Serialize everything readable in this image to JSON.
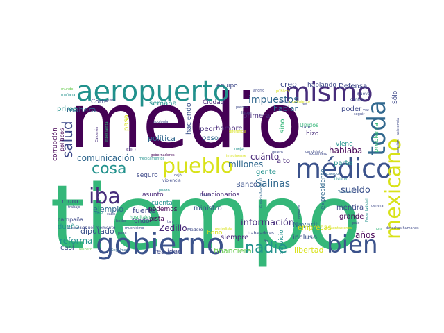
{
  "words": [
    {
      "text": "tiempo",
      "color": "#35b779"
    },
    {
      "text": "medio",
      "color": "#440154"
    },
    {
      "text": "gobierno",
      "color": "#3b528b"
    },
    {
      "text": "aeropuerto",
      "color": "#21918c"
    },
    {
      "text": "mismo",
      "color": "#472d7b"
    },
    {
      "text": "médico",
      "color": "#3b528b"
    },
    {
      "text": "toda",
      "color": "#31688e"
    },
    {
      "text": "mexicano",
      "color": "#d8e219"
    },
    {
      "text": "pueblo",
      "color": "#d8e219"
    },
    {
      "text": "bien",
      "color": "#3b528b"
    },
    {
      "text": "iba",
      "color": "#472d7b"
    },
    {
      "text": "cosa",
      "color": "#21918c"
    },
    {
      "text": "nadie",
      "color": "#21918c"
    },
    {
      "text": "salud",
      "color": "#3e4989"
    },
    {
      "text": "impuestos",
      "color": "#31688e"
    },
    {
      "text": "comunicación",
      "color": "#31688e"
    },
    {
      "text": "Salinas",
      "color": "#31688e"
    },
    {
      "text": "sueldo",
      "color": "#3b528b"
    },
    {
      "text": "información",
      "color": "#472d7b"
    },
    {
      "text": "reforma",
      "color": "#21918c"
    },
    {
      "text": "millones",
      "color": "#31688e"
    },
    {
      "text": "hablaba",
      "color": "#440154"
    },
    {
      "text": "Zedillo",
      "color": "#482878"
    },
    {
      "text": "financiera",
      "color": "#6ece58"
    },
    {
      "text": "años",
      "color": "#440154"
    },
    {
      "text": "libertad",
      "color": "#d8e219"
    },
    {
      "text": "hablar",
      "color": "#31688e"
    },
    {
      "text": "creo",
      "color": "#3e4989"
    },
    {
      "text": "cuánto",
      "color": "#482878"
    },
    {
      "text": "fuerte",
      "color": "#3e4989"
    },
    {
      "text": "ejemplo",
      "color": "#31688e"
    },
    {
      "text": "diputado",
      "color": "#3b528b"
    },
    {
      "text": "manera",
      "color": "#31688e"
    },
    {
      "text": "Defensa",
      "color": "#3e4989"
    },
    {
      "text": "política",
      "color": "#31688e"
    },
    {
      "text": "gente",
      "color": "#21918c"
    },
    {
      "text": "alto",
      "color": "#482878"
    },
    {
      "text": "hombre",
      "color": "#482878"
    },
    {
      "text": "problema",
      "color": "#35b779"
    },
    {
      "text": "mentira",
      "color": "#3e4989"
    },
    {
      "text": "Nayarit",
      "color": "#31688e"
    },
    {
      "text": "grande",
      "color": "#440154"
    },
    {
      "text": "incluso",
      "color": "#3b528b"
    },
    {
      "text": "ministro",
      "color": "#3b528b"
    },
    {
      "text": "siempre",
      "color": "#482878"
    },
    {
      "text": "realidad",
      "color": "#3e4989"
    },
    {
      "text": "casi",
      "color": "#3e4989"
    },
    {
      "text": "dueño",
      "color": "#21918c"
    },
    {
      "text": "campaña",
      "color": "#3e4989"
    },
    {
      "text": "corrupción",
      "color": "#440154"
    },
    {
      "text": "políticos",
      "color": "#440154"
    },
    {
      "text": "primer",
      "color": "#21918c"
    },
    {
      "text": "semana",
      "color": "#21918c"
    },
    {
      "text": "pasa",
      "color": "#d8e219"
    },
    {
      "text": "haciendo",
      "color": "#3b528b"
    },
    {
      "text": "Ciudad",
      "color": "#482878"
    },
    {
      "text": "peor",
      "color": "#472d7b"
    },
    {
      "text": "peso",
      "color": "#31688e"
    },
    {
      "text": "sino",
      "color": "#35b779"
    },
    {
      "text": "primera",
      "color": "#472d7b"
    },
    {
      "text": "hizo",
      "color": "#472d7b"
    },
    {
      "text": "parte",
      "color": "#21918c"
    },
    {
      "text": "viene",
      "color": "#21918c"
    },
    {
      "text": "poder",
      "color": "#3e4989"
    },
    {
      "text": "Sólo",
      "color": "#3e4989"
    },
    {
      "text": "Banco",
      "color": "#3b528b"
    },
    {
      "text": "empresas",
      "color": "#d8e219"
    },
    {
      "text": "servicio",
      "color": "#21918c"
    },
    {
      "text": "expresidente",
      "color": "#31688e"
    },
    {
      "text": "funcionarios",
      "color": "#482878"
    },
    {
      "text": "asunto",
      "color": "#482878"
    },
    {
      "text": "seguro",
      "color": "#3e4989"
    },
    {
      "text": "podemos",
      "color": "#440154"
    },
    {
      "text": "cuenta",
      "color": "#21918c"
    },
    {
      "text": "fondo",
      "color": "#3e4989"
    },
    {
      "text": "pista",
      "color": "#440154"
    },
    {
      "text": "bono",
      "color": "#d8e219"
    },
    {
      "text": "equipo",
      "color": "#3e4989"
    },
    {
      "text": "hablando",
      "color": "#3e4989"
    },
    {
      "text": "muro",
      "color": "#3e4989"
    },
    {
      "text": "dio",
      "color": "#482878"
    },
    {
      "text": "Corte",
      "color": "#3e4989"
    },
    {
      "text": "Unidos",
      "color": "#35b779"
    },
    {
      "text": "cráter",
      "color": "#3e4989"
    },
    {
      "text": "Terminal",
      "color": "#31688e"
    },
    {
      "text": "Guardia Nacional",
      "color": "#31688e"
    },
    {
      "text": "Poder Judicial",
      "color": "#21918c"
    },
    {
      "text": "aquel momento",
      "color": "#3e4989"
    },
    {
      "text": "muchísimo",
      "color": "#3e4989"
    },
    {
      "text": "hospitales",
      "color": "#35b779"
    },
    {
      "text": "trabajadores",
      "color": "#3e4989"
    },
    {
      "text": "Madero",
      "color": "#3e4989"
    },
    {
      "text": "violencia",
      "color": "#3e4989"
    },
    {
      "text": "gobernadores",
      "color": "#440154"
    },
    {
      "text": "Segalmex",
      "color": "#31688e"
    },
    {
      "text": "respeto",
      "color": "#6ece58"
    },
    {
      "text": "apología",
      "color": "#3e4989"
    },
    {
      "text": "Calderón",
      "color": "#472d7b"
    },
    {
      "text": "especialista",
      "color": "#35b779"
    },
    {
      "text": "extranjero",
      "color": "#3e4989"
    },
    {
      "text": "candidato",
      "color": "#3e4989"
    },
    {
      "text": "acuerdo",
      "color": "#31688e"
    },
    {
      "text": "hicieron",
      "color": "#21918c"
    },
    {
      "text": "derechos humanos",
      "color": "#3e4989"
    },
    {
      "text": "pensión",
      "color": "#3e4989"
    },
    {
      "text": "asistencia",
      "color": "#3e4989"
    },
    {
      "text": "medicamentos",
      "color": "#21918c"
    },
    {
      "text": "imaginense",
      "color": "#d8e219"
    },
    {
      "text": "diferencia",
      "color": "#d8e219"
    },
    {
      "text": "periodista",
      "color": "#d8e219"
    },
    {
      "text": "austeridad",
      "color": "#3e4989"
    },
    {
      "text": "nuevo",
      "color": "#3e4989"
    },
    {
      "text": "centro",
      "color": "#3e4989"
    },
    {
      "text": "movimiento",
      "color": "#d8e219"
    },
    {
      "text": "quiero",
      "color": "#3e4989"
    },
    {
      "text": "prensa",
      "color": "#3e4989"
    },
    {
      "text": "ahorro",
      "color": "#3e4989"
    },
    {
      "text": "mañana",
      "color": "#21918c"
    },
    {
      "text": "lista",
      "color": "#3e4989"
    },
    {
      "text": "mejor",
      "color": "#21918c"
    },
    {
      "text": "trabajo",
      "color": "#3e4989"
    },
    {
      "text": "hecho",
      "color": "#3e4989"
    },
    {
      "text": "libro",
      "color": "#21918c"
    },
    {
      "text": "pone",
      "color": "#3e4989"
    },
    {
      "text": "nombre",
      "color": "#3e4989"
    },
    {
      "text": "pais",
      "color": "#3e4989"
    },
    {
      "text": "hora",
      "color": "#35b779"
    },
    {
      "text": "fin",
      "color": "#3e4989"
    },
    {
      "text": "tan",
      "color": "#3e4989"
    },
    {
      "text": "mundo",
      "color": "#6ece58"
    },
    {
      "text": "ley",
      "color": "#3e4989"
    },
    {
      "text": "vez",
      "color": "#3e4989"
    },
    {
      "text": "seguir",
      "color": "#3e4989"
    },
    {
      "text": "noche",
      "color": "#3e4989"
    },
    {
      "text": "llegar",
      "color": "#3e4989"
    },
    {
      "text": "público",
      "color": "#d8e219"
    },
    {
      "text": "general",
      "color": "#3e4989"
    },
    {
      "text": "cabo",
      "color": "#3e4989"
    },
    {
      "text": "puedo",
      "color": "#21918c"
    },
    {
      "text": "hacen",
      "color": "#3e4989"
    },
    {
      "text": "dejó",
      "color": "#3e4989"
    },
    {
      "text": "presentaciones",
      "color": "#d8e219"
    }
  ]
}
